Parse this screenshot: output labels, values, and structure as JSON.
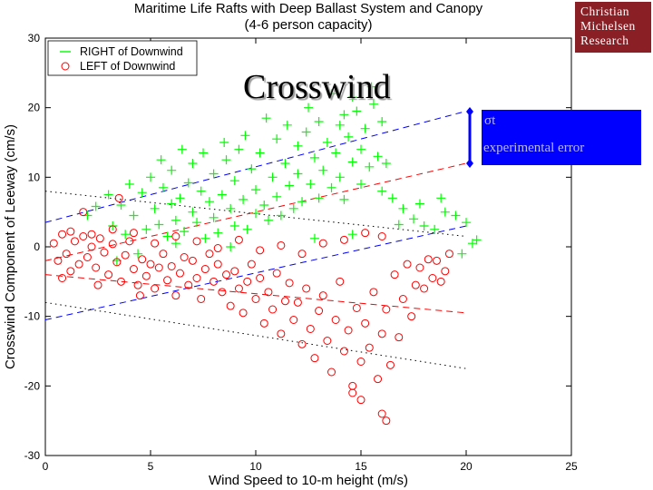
{
  "chart_data": {
    "type": "scatter",
    "title": "Maritime Life Rafts with Deep Ballast System and Canopy",
    "subtitle": "(4-6 person capacity)",
    "xlabel": "Wind Speed to 10-m height (m/s)",
    "ylabel": "Crosswind Component of Leeway (cm/s)",
    "xlim": [
      0,
      25
    ],
    "ylim": [
      -30,
      30
    ],
    "xticks": [
      0,
      5,
      10,
      15,
      20,
      25
    ],
    "yticks": [
      -30,
      -20,
      -10,
      0,
      10,
      20,
      30
    ],
    "grid": false,
    "legend_placement": "top-left",
    "series": [
      {
        "name": "RIGHT of Downwind",
        "marker": "plus",
        "color": "#00ff00",
        "points": [
          [
            2.0,
            4.5
          ],
          [
            2.4,
            5.8
          ],
          [
            3.0,
            7.5
          ],
          [
            3.2,
            3.0
          ],
          [
            3.6,
            6.0
          ],
          [
            3.8,
            1.8
          ],
          [
            4.2,
            4.5
          ],
          [
            4.6,
            7.8
          ],
          [
            4.8,
            2.5
          ],
          [
            5.0,
            10.0
          ],
          [
            5.2,
            5.5
          ],
          [
            5.4,
            3.2
          ],
          [
            5.6,
            8.5
          ],
          [
            5.8,
            1.5
          ],
          [
            6.0,
            6.2
          ],
          [
            6.0,
            11.0
          ],
          [
            6.2,
            3.8
          ],
          [
            6.4,
            7.0
          ],
          [
            6.6,
            2.2
          ],
          [
            6.8,
            9.2
          ],
          [
            7.0,
            5.0
          ],
          [
            7.0,
            12.0
          ],
          [
            7.2,
            3.5
          ],
          [
            7.4,
            8.0
          ],
          [
            7.6,
            1.2
          ],
          [
            7.8,
            6.5
          ],
          [
            8.0,
            10.5
          ],
          [
            8.0,
            4.2
          ],
          [
            8.2,
            2.0
          ],
          [
            8.4,
            7.5
          ],
          [
            8.6,
            12.5
          ],
          [
            8.8,
            5.5
          ],
          [
            9.0,
            3.0
          ],
          [
            9.0,
            9.5
          ],
          [
            9.2,
            14.0
          ],
          [
            9.4,
            6.8
          ],
          [
            9.6,
            2.5
          ],
          [
            9.8,
            11.2
          ],
          [
            10.0,
            4.8
          ],
          [
            10.0,
            8.2
          ],
          [
            10.2,
            13.5
          ],
          [
            10.4,
            6.0
          ],
          [
            10.6,
            3.8
          ],
          [
            10.8,
            10.0
          ],
          [
            11.0,
            7.2
          ],
          [
            11.0,
            15.5
          ],
          [
            11.2,
            4.5
          ],
          [
            11.4,
            12.0
          ],
          [
            11.6,
            8.8
          ],
          [
            11.8,
            5.5
          ],
          [
            12.0,
            14.5
          ],
          [
            12.0,
            10.5
          ],
          [
            12.2,
            6.5
          ],
          [
            12.4,
            16.5
          ],
          [
            12.6,
            9.0
          ],
          [
            12.8,
            12.8
          ],
          [
            13.0,
            7.0
          ],
          [
            13.0,
            18.0
          ],
          [
            13.2,
            11.0
          ],
          [
            13.4,
            15.0
          ],
          [
            13.6,
            8.5
          ],
          [
            13.8,
            13.5
          ],
          [
            14.0,
            17.5
          ],
          [
            14.0,
            10.0
          ],
          [
            14.2,
            6.8
          ],
          [
            14.4,
            15.8
          ],
          [
            14.6,
            12.2
          ],
          [
            14.8,
            19.5
          ],
          [
            15.0,
            9.0
          ],
          [
            15.0,
            14.0
          ],
          [
            15.2,
            17.0
          ],
          [
            15.4,
            11.5
          ],
          [
            15.6,
            20.5
          ],
          [
            15.8,
            13.0
          ],
          [
            16.0,
            8.0
          ],
          [
            16.0,
            18.0
          ],
          [
            16.2,
            12.0
          ],
          [
            16.5,
            7.0
          ],
          [
            17.0,
            5.5
          ],
          [
            17.5,
            4.0
          ],
          [
            18.0,
            3.0
          ],
          [
            18.5,
            2.5
          ],
          [
            19.0,
            5.0
          ],
          [
            19.5,
            4.5
          ],
          [
            20.0,
            3.5
          ],
          [
            20.3,
            0.5
          ],
          [
            19.8,
            -1.0
          ],
          [
            20.5,
            1.0
          ],
          [
            12.5,
            20.0
          ],
          [
            13.6,
            22.0
          ],
          [
            14.6,
            21.5
          ],
          [
            15.5,
            23.0
          ],
          [
            14.2,
            19.0
          ],
          [
            9.5,
            16.0
          ],
          [
            11.5,
            17.5
          ],
          [
            10.5,
            18.5
          ],
          [
            8.5,
            15.0
          ],
          [
            7.5,
            13.5
          ],
          [
            6.5,
            14.0
          ],
          [
            5.5,
            12.5
          ],
          [
            4.0,
            9.0
          ],
          [
            3.4,
            -2.0
          ],
          [
            4.4,
            -1.0
          ],
          [
            6.2,
            0.5
          ],
          [
            8.8,
            0.0
          ],
          [
            12.8,
            1.2
          ],
          [
            14.6,
            1.8
          ],
          [
            16.8,
            3.2
          ],
          [
            17.8,
            6.2
          ],
          [
            18.8,
            7.0
          ]
        ]
      },
      {
        "name": "LEFT of Downwind",
        "marker": "circle",
        "color": "#ff0000",
        "points": [
          [
            0.4,
            0.5
          ],
          [
            0.6,
            -2.0
          ],
          [
            0.8,
            1.8
          ],
          [
            1.0,
            -1.0
          ],
          [
            1.2,
            -3.5
          ],
          [
            1.4,
            0.8
          ],
          [
            1.6,
            -2.5
          ],
          [
            1.8,
            1.5
          ],
          [
            2.0,
            -1.5
          ],
          [
            2.2,
            0.0
          ],
          [
            2.4,
            -3.0
          ],
          [
            2.6,
            1.2
          ],
          [
            2.8,
            -0.8
          ],
          [
            3.0,
            -4.0
          ],
          [
            3.2,
            0.4
          ],
          [
            3.4,
            -2.2
          ],
          [
            3.6,
            -5.0
          ],
          [
            3.8,
            -1.2
          ],
          [
            4.0,
            0.8
          ],
          [
            4.2,
            -3.2
          ],
          [
            4.4,
            -5.5
          ],
          [
            4.6,
            -1.8
          ],
          [
            4.8,
            -4.2
          ],
          [
            5.0,
            -2.5
          ],
          [
            5.2,
            -6.0
          ],
          [
            5.4,
            -3.0
          ],
          [
            5.6,
            -1.0
          ],
          [
            5.8,
            -4.8
          ],
          [
            6.0,
            -2.8
          ],
          [
            6.2,
            -7.0
          ],
          [
            6.4,
            -3.8
          ],
          [
            6.6,
            -1.5
          ],
          [
            6.8,
            -5.5
          ],
          [
            7.0,
            -2.0
          ],
          [
            7.2,
            -4.5
          ],
          [
            7.4,
            -7.5
          ],
          [
            7.6,
            -3.2
          ],
          [
            7.8,
            -1.0
          ],
          [
            8.0,
            -5.0
          ],
          [
            8.2,
            -2.5
          ],
          [
            8.4,
            -6.5
          ],
          [
            8.6,
            -4.0
          ],
          [
            8.8,
            -8.5
          ],
          [
            9.0,
            -3.5
          ],
          [
            9.2,
            -6.0
          ],
          [
            9.4,
            -9.5
          ],
          [
            9.6,
            -5.0
          ],
          [
            9.8,
            -2.5
          ],
          [
            10.0,
            -7.5
          ],
          [
            10.2,
            -4.5
          ],
          [
            10.4,
            -11.0
          ],
          [
            10.6,
            -6.5
          ],
          [
            10.8,
            -9.0
          ],
          [
            11.0,
            -3.8
          ],
          [
            11.2,
            -12.5
          ],
          [
            11.4,
            -7.8
          ],
          [
            11.6,
            -5.2
          ],
          [
            11.8,
            -10.5
          ],
          [
            12.0,
            -8.0
          ],
          [
            12.2,
            -14.0
          ],
          [
            12.4,
            -6.0
          ],
          [
            12.6,
            -11.8
          ],
          [
            12.8,
            -16.0
          ],
          [
            13.0,
            -9.2
          ],
          [
            13.2,
            -7.0
          ],
          [
            13.4,
            -13.5
          ],
          [
            13.6,
            -18.0
          ],
          [
            13.8,
            -10.5
          ],
          [
            14.0,
            -5.0
          ],
          [
            14.2,
            -15.0
          ],
          [
            14.4,
            -12.0
          ],
          [
            14.6,
            -20.0
          ],
          [
            14.8,
            -8.8
          ],
          [
            15.0,
            -16.5
          ],
          [
            15.2,
            -11.0
          ],
          [
            15.4,
            -14.5
          ],
          [
            15.6,
            -6.5
          ],
          [
            15.8,
            -19.0
          ],
          [
            16.0,
            -12.5
          ],
          [
            16.0,
            -24.0
          ],
          [
            16.2,
            -25.0
          ],
          [
            16.2,
            -9.0
          ],
          [
            16.4,
            -17.0
          ],
          [
            16.6,
            -4.0
          ],
          [
            16.8,
            -13.0
          ],
          [
            17.0,
            -7.5
          ],
          [
            17.2,
            -2.5
          ],
          [
            17.4,
            -10.0
          ],
          [
            17.6,
            -5.5
          ],
          [
            17.8,
            -3.0
          ],
          [
            18.0,
            -6.0
          ],
          [
            18.2,
            -1.8
          ],
          [
            18.4,
            -4.5
          ],
          [
            18.6,
            -2.0
          ],
          [
            18.8,
            -5.0
          ],
          [
            19.0,
            -3.5
          ],
          [
            19.2,
            -1.0
          ],
          [
            16.0,
            1.5
          ],
          [
            15.2,
            2.0
          ],
          [
            14.2,
            1.0
          ],
          [
            13.2,
            0.5
          ],
          [
            12.2,
            -1.0
          ],
          [
            11.2,
            0.2
          ],
          [
            10.2,
            -0.5
          ],
          [
            9.2,
            1.0
          ],
          [
            8.2,
            -0.2
          ],
          [
            7.2,
            0.8
          ],
          [
            6.2,
            1.5
          ],
          [
            5.2,
            0.5
          ],
          [
            4.2,
            2.0
          ],
          [
            3.2,
            2.5
          ],
          [
            2.2,
            1.8
          ],
          [
            1.2,
            2.2
          ],
          [
            3.5,
            7.0
          ],
          [
            1.8,
            5.0
          ],
          [
            0.8,
            -4.5
          ],
          [
            2.5,
            -5.5
          ],
          [
            4.5,
            -7.0
          ],
          [
            15.0,
            -22.0
          ],
          [
            14.6,
            -21.0
          ]
        ]
      }
    ],
    "reference_lines": [
      {
        "style": "dashed",
        "color": "#0000ff",
        "points": [
          [
            0,
            3.5
          ],
          [
            20,
            19.5
          ]
        ]
      },
      {
        "style": "dashed",
        "color": "#0000ff",
        "points": [
          [
            0,
            -10.5
          ],
          [
            20,
            3.0
          ]
        ]
      },
      {
        "style": "dashed",
        "color": "#ff0000",
        "points": [
          [
            0,
            -2.0
          ],
          [
            20,
            12.0
          ]
        ]
      },
      {
        "style": "dashed",
        "color": "#ff0000",
        "points": [
          [
            0,
            -4.0
          ],
          [
            20,
            -9.5
          ]
        ]
      },
      {
        "style": "dotted",
        "color": "#000000",
        "points": [
          [
            0,
            8.0
          ],
          [
            20,
            1.5
          ]
        ]
      },
      {
        "style": "dotted",
        "color": "#000000",
        "points": [
          [
            0,
            -8.0
          ],
          [
            20,
            -17.5
          ]
        ]
      }
    ]
  },
  "logo": {
    "lines": [
      "Christian",
      "Michelsen",
      "Research"
    ],
    "color": "#8a1f25"
  },
  "overlay": {
    "title": "Crosswind",
    "error_box": {
      "sigma_label": "σt",
      "text": "experimental error",
      "color": "#0000ff"
    }
  }
}
